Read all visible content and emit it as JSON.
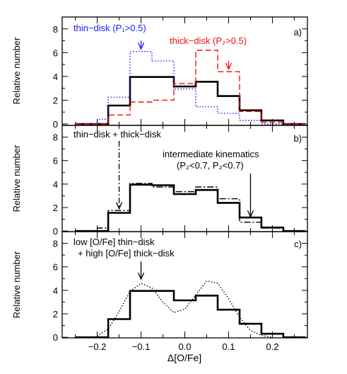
{
  "figure": {
    "xlabel": "Δ[O/Fe]",
    "x_ticks": [
      "−0.2",
      "−0.1",
      "0.0",
      "0.1",
      "0.2"
    ],
    "x_tick_values": [
      -0.2,
      -0.1,
      0.0,
      0.1,
      0.2
    ],
    "xlim": [
      -0.28,
      0.28
    ]
  },
  "chart_data": [
    {
      "type": "line",
      "panel_label": "a)",
      "ylabel": "Relative number",
      "ylim": [
        0,
        9
      ],
      "y_ticks": [
        0,
        2,
        4,
        6,
        8
      ],
      "bin_edges": [
        -0.25,
        -0.2,
        -0.175,
        -0.125,
        -0.075,
        -0.025,
        0.025,
        0.075,
        0.125,
        0.175,
        0.225,
        0.275
      ],
      "series": [
        {
          "style": "solid",
          "color": "#000000",
          "values": [
            0,
            0,
            1.55,
            3.95,
            3.95,
            3.15,
            3.55,
            2.35,
            1.15,
            0.3,
            0
          ]
        },
        {
          "style": "dotted",
          "color": "#1a1aff",
          "values": [
            0,
            0.4,
            2.25,
            6.1,
            5.3,
            2.95,
            1.45,
            0.9,
            0.3,
            0,
            0
          ]
        },
        {
          "style": "dashed",
          "color": "#ee1111",
          "values": [
            0,
            0,
            0.75,
            1.85,
            2.0,
            3.4,
            6.2,
            4.4,
            1.05,
            0.15,
            0
          ]
        }
      ],
      "annotations": [
        {
          "text": "thin−disk (P₁>0.5)",
          "color": "#1a1aff",
          "arrow_x": -0.1,
          "arrow_y": 6.3
        },
        {
          "text": "thick−disk (P₂>0.5)",
          "color": "#ee1111",
          "arrow_x": 0.1,
          "arrow_y": 4.6
        }
      ]
    },
    {
      "type": "line",
      "panel_label": "b)",
      "ylabel": "Relative number",
      "ylim": [
        0,
        9
      ],
      "y_ticks": [
        0,
        2,
        4,
        6,
        8
      ],
      "bin_edges": [
        -0.25,
        -0.2,
        -0.175,
        -0.125,
        -0.075,
        -0.025,
        0.025,
        0.075,
        0.125,
        0.175,
        0.225,
        0.275
      ],
      "series": [
        {
          "style": "solid",
          "color": "#000000",
          "values": [
            0,
            0,
            1.55,
            3.95,
            3.9,
            3.15,
            3.5,
            2.4,
            1.15,
            0.3,
            0
          ]
        },
        {
          "style": "dashdot",
          "color": "#000000",
          "values": [
            0,
            0.25,
            1.75,
            4.05,
            3.75,
            3.35,
            3.75,
            2.75,
            0.75,
            0.25,
            0
          ]
        }
      ],
      "annotations": [
        {
          "text": "thin−disk + thick−disk",
          "arrow_x": -0.15,
          "arrow_y": 1.9
        },
        {
          "text": "intermediate kinematics",
          "text2": "(P₂<0.7, P₂<0.7)",
          "arrow_x": 0.15,
          "arrow_y": 1.2
        }
      ]
    },
    {
      "type": "line",
      "panel_label": "c)",
      "ylabel": "Relative number",
      "ylim": [
        0,
        9
      ],
      "y_ticks": [
        0,
        2,
        4,
        6,
        8
      ],
      "bin_edges": [
        -0.25,
        -0.2,
        -0.175,
        -0.125,
        -0.075,
        -0.025,
        0.025,
        0.075,
        0.125,
        0.175,
        0.225,
        0.275
      ],
      "series": [
        {
          "style": "solid",
          "color": "#000000",
          "values": [
            0,
            0,
            1.55,
            3.95,
            3.95,
            3.15,
            3.55,
            2.35,
            1.15,
            0.3,
            0
          ]
        },
        {
          "style": "dotted",
          "color": "#000000",
          "kind": "curve",
          "x": [
            -0.2,
            -0.175,
            -0.15,
            -0.125,
            -0.1,
            -0.075,
            -0.05,
            -0.025,
            0.0,
            0.025,
            0.05,
            0.075,
            0.1,
            0.125,
            0.15,
            0.175,
            0.2
          ],
          "y": [
            0.1,
            0.7,
            2.2,
            3.9,
            4.6,
            4.2,
            3.0,
            2.1,
            2.4,
            3.6,
            4.8,
            4.6,
            3.3,
            1.7,
            0.6,
            0.15,
            0.0
          ]
        }
      ],
      "annotations": [
        {
          "text": "low [O/Fe] thin−disk",
          "text2": "+ high [O/Fe] thick−disk",
          "arrow_x": -0.1,
          "arrow_y": 4.95
        }
      ]
    }
  ]
}
